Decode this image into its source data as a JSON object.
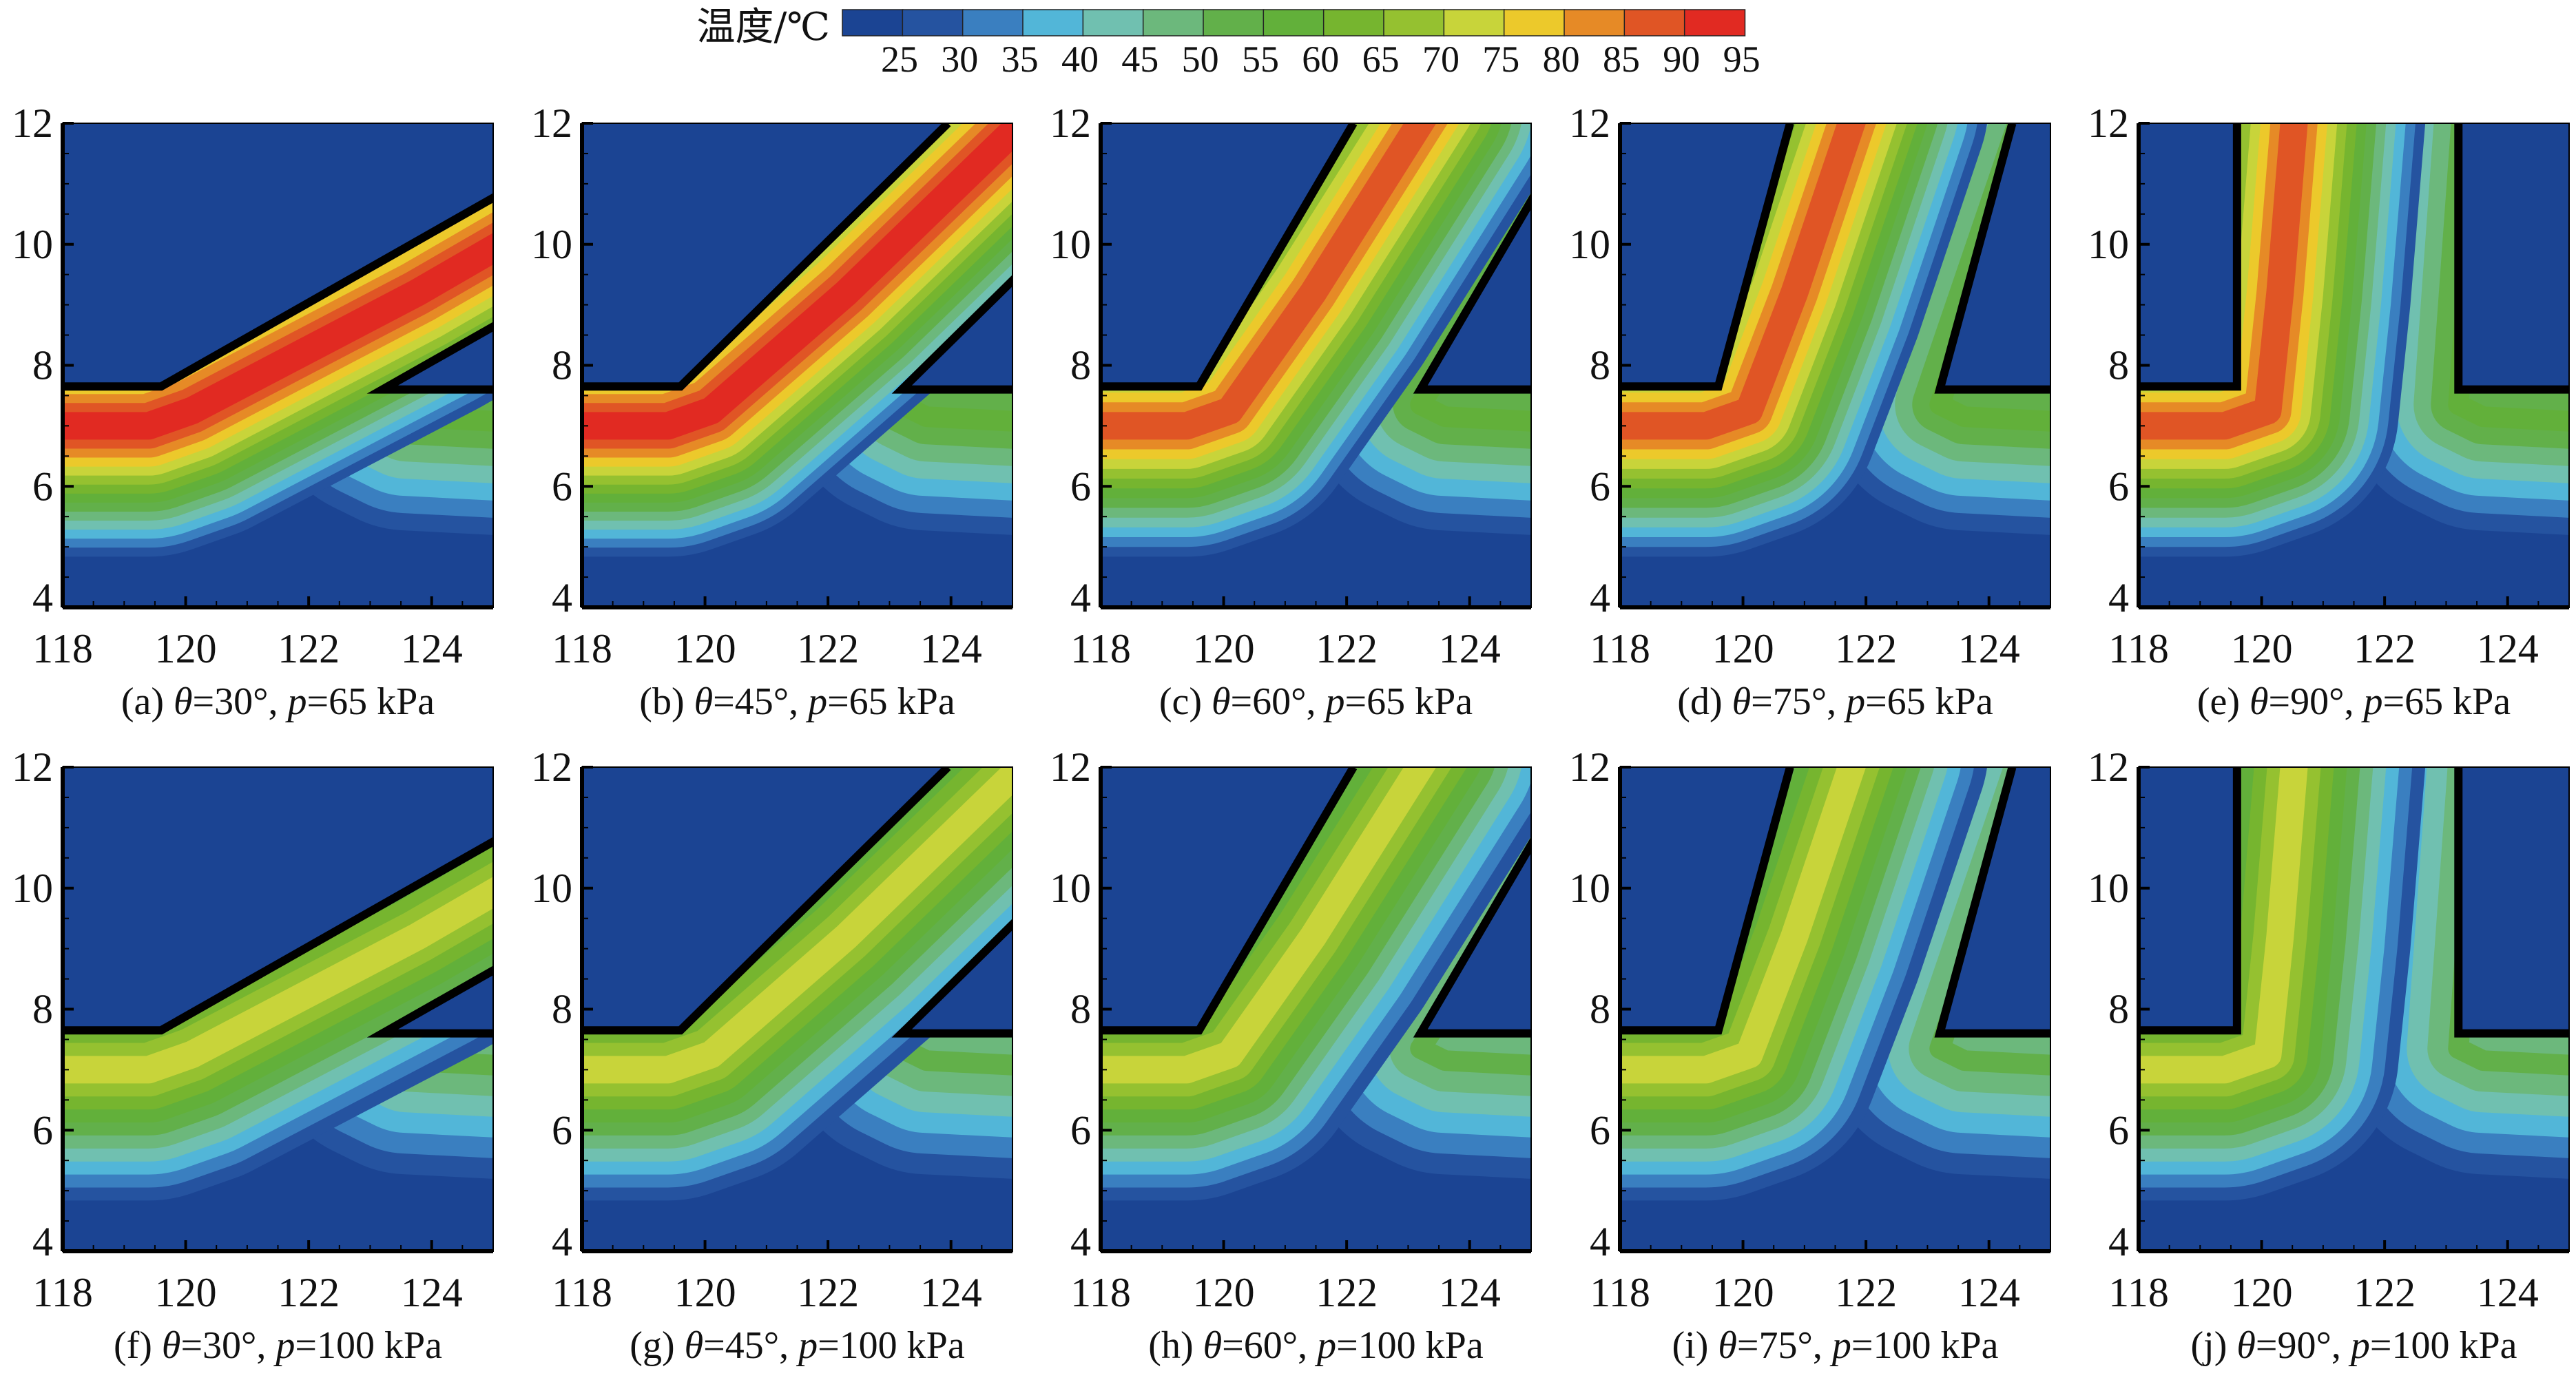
{
  "chart_data": {
    "type": "heatmap",
    "subtype": "filled-contour",
    "colorbar": {
      "title": "温度/℃",
      "levels": [
        25,
        30,
        35,
        40,
        45,
        50,
        55,
        60,
        65,
        70,
        75,
        80,
        85,
        90,
        95
      ],
      "colors": [
        "#1b4493",
        "#2553a0",
        "#3a7fc0",
        "#52b6d8",
        "#70c0b0",
        "#6cb87c",
        "#62b04a",
        "#62b03a",
        "#76b52f",
        "#95c130",
        "#c8d43a",
        "#ecc92b",
        "#e68a26",
        "#e05525",
        "#e12a22"
      ]
    },
    "xaxis": {
      "range": [
        118,
        125
      ],
      "ticks": [
        118,
        120,
        122,
        124
      ]
    },
    "yaxis": {
      "range": [
        4,
        12
      ],
      "ticks": [
        4,
        6,
        8,
        10,
        12
      ]
    },
    "theta_symbol": "θ",
    "p_symbol": "p",
    "panels": [
      {
        "label": "(a)",
        "theta": 30,
        "theta_text": "30°",
        "pressure_kpa": 65,
        "p_text": "65 kPa",
        "max_temp": 95
      },
      {
        "label": "(b)",
        "theta": 45,
        "theta_text": "45°",
        "pressure_kpa": 65,
        "p_text": "65 kPa",
        "max_temp": 95
      },
      {
        "label": "(c)",
        "theta": 60,
        "theta_text": "60°",
        "pressure_kpa": 65,
        "p_text": "65 kPa",
        "max_temp": 90
      },
      {
        "label": "(d)",
        "theta": 75,
        "theta_text": "75°",
        "pressure_kpa": 65,
        "p_text": "65 kPa",
        "max_temp": 90
      },
      {
        "label": "(e)",
        "theta": 90,
        "theta_text": "90°",
        "pressure_kpa": 65,
        "p_text": "65 kPa",
        "max_temp": 90
      },
      {
        "label": "(f)",
        "theta": 30,
        "theta_text": "30°",
        "pressure_kpa": 100,
        "p_text": "100 kPa",
        "max_temp": 75
      },
      {
        "label": "(g)",
        "theta": 45,
        "theta_text": "45°",
        "pressure_kpa": 100,
        "p_text": "100 kPa",
        "max_temp": 75
      },
      {
        "label": "(h)",
        "theta": 60,
        "theta_text": "60°",
        "pressure_kpa": 100,
        "p_text": "100 kPa",
        "max_temp": 75
      },
      {
        "label": "(i)",
        "theta": 75,
        "theta_text": "75°",
        "pressure_kpa": 100,
        "p_text": "100 kPa",
        "max_temp": 75
      },
      {
        "label": "(j)",
        "theta": 90,
        "theta_text": "90°",
        "pressure_kpa": 100,
        "p_text": "100 kPa",
        "max_temp": 75
      }
    ]
  }
}
